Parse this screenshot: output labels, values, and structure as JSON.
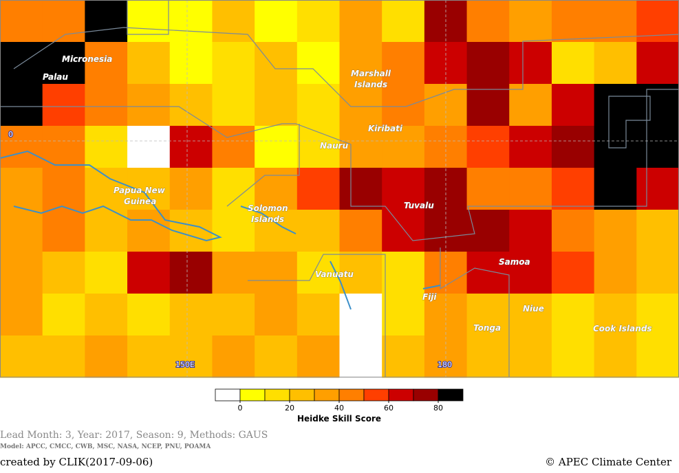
{
  "map": {
    "places": [
      "Micronesia",
      "Palau",
      "Marshall Islands",
      "Kiribati",
      "Nauru",
      "Papua New Guinea",
      "Solomon Islands",
      "Tuvalu",
      "Samoa",
      "Vanuatu",
      "Fiji",
      "Niue",
      "Tonga",
      "Cook Islands"
    ],
    "axis_labels": [
      "0",
      "150E",
      "180"
    ],
    "cells": [
      [
        45,
        45,
        85,
        5,
        5,
        25,
        5,
        15,
        35,
        15,
        75,
        45,
        35,
        45,
        45,
        55
      ],
      [
        85,
        85,
        45,
        25,
        5,
        15,
        25,
        5,
        35,
        45,
        65,
        75,
        65,
        15,
        25,
        65
      ],
      [
        85,
        55,
        45,
        35,
        25,
        15,
        25,
        15,
        35,
        45,
        35,
        75,
        35,
        65,
        85,
        85
      ],
      [
        45,
        45,
        15,
        -5,
        65,
        45,
        5,
        15,
        35,
        35,
        45,
        55,
        65,
        75,
        85,
        85
      ],
      [
        35,
        45,
        25,
        25,
        35,
        15,
        35,
        55,
        75,
        65,
        75,
        45,
        45,
        55,
        85,
        65
      ],
      [
        35,
        45,
        25,
        35,
        25,
        15,
        25,
        25,
        45,
        65,
        75,
        75,
        65,
        45,
        35,
        25
      ],
      [
        35,
        25,
        15,
        65,
        75,
        35,
        35,
        15,
        25,
        15,
        45,
        65,
        65,
        55,
        35,
        25
      ],
      [
        35,
        15,
        25,
        15,
        25,
        25,
        35,
        25,
        -5,
        15,
        35,
        25,
        25,
        15,
        25,
        15
      ],
      [
        25,
        25,
        35,
        25,
        25,
        35,
        25,
        35,
        -5,
        25,
        35,
        25,
        25,
        15,
        25,
        15
      ]
    ]
  },
  "colorbar": {
    "title": "Heidke Skill Score",
    "lim": [
      -10,
      90
    ],
    "ticks": [
      0,
      20,
      40,
      60,
      80
    ],
    "colors": [
      "#ffffff",
      "#ffff00",
      "#ffdf00",
      "#ffbf00",
      "#ff9f00",
      "#ff7f00",
      "#ff3f00",
      "#cc0000",
      "#990000",
      "#000000"
    ]
  },
  "footer": {
    "info": "Lead Month: 3, Year: 2017, Season: 9, Methods: GAUS",
    "models": "Model: APCC, CMCC, CWB, MSC, NASA, NCEP, PNU, POAMA",
    "created": "created by CLIK(2017-09-06)",
    "credit": "© APEC Climate Center"
  }
}
